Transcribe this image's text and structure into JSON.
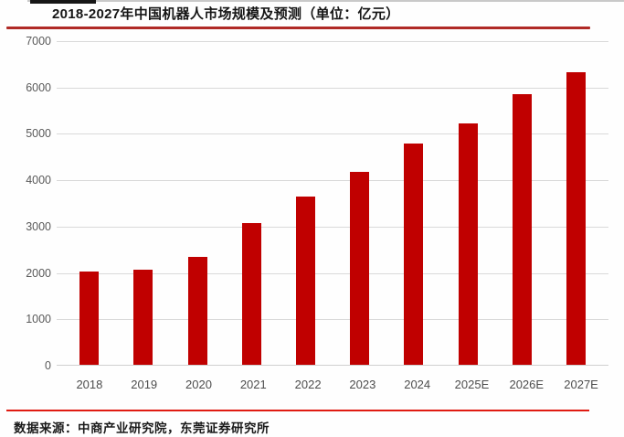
{
  "title": "2018-2027年中国机器人市场规模及预测（单位：亿元）",
  "source_note": "数据来源：中商产业研究院，东莞证券研究所",
  "colors": {
    "bar": "#c00000",
    "title_rule": "#b02a26",
    "footer_rule": "#e01b12",
    "gridline": "#d9d9d9",
    "tick_label": "#595959",
    "title_text": "#161616"
  },
  "chart_data": {
    "type": "bar",
    "title": "2018-2027年中国机器人市场规模及预测（单位：亿元）",
    "categories": [
      "2018",
      "2019",
      "2020",
      "2021",
      "2022",
      "2023",
      "2024",
      "2025E",
      "2026E",
      "2027E"
    ],
    "values": [
      2040,
      2080,
      2340,
      3070,
      3650,
      4180,
      4790,
      5230,
      5860,
      6330
    ],
    "xlabel": "",
    "ylabel": "",
    "ylim": [
      0,
      7000
    ],
    "ytick_step": 1000,
    "yticks": [
      0,
      1000,
      2000,
      3000,
      4000,
      5000,
      6000,
      7000
    ],
    "grid": true,
    "legend": "none",
    "unit": "亿元"
  }
}
